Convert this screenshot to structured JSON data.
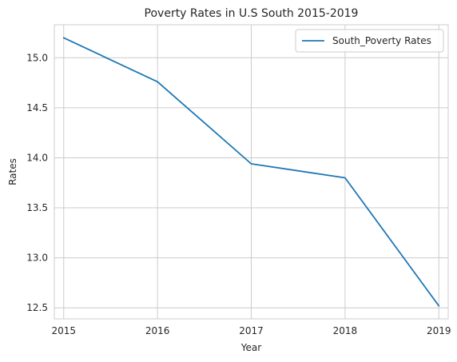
{
  "chart_data": {
    "type": "line",
    "title": "Poverty Rates in U.S South 2015-2019",
    "xlabel": "Year",
    "ylabel": "Rates",
    "x": [
      2015,
      2016,
      2017,
      2018,
      2019
    ],
    "x_tick_labels": [
      "2015",
      "2016",
      "2017",
      "2018",
      "2019"
    ],
    "series": [
      {
        "name": "South_Poverty Rates",
        "values": [
          15.2,
          14.76,
          13.94,
          13.8,
          12.52
        ],
        "color": "#1f77b4"
      }
    ],
    "xlim": [
      2014.9,
      2019.1
    ],
    "ylim": [
      12.39,
      15.33
    ],
    "y_ticks": [
      12.5,
      13.0,
      13.5,
      14.0,
      14.5,
      15.0
    ],
    "y_tick_labels": [
      "12.5",
      "13.0",
      "13.5",
      "14.0",
      "14.5",
      "15.0"
    ],
    "grid": true,
    "legend_position": "top-right"
  }
}
